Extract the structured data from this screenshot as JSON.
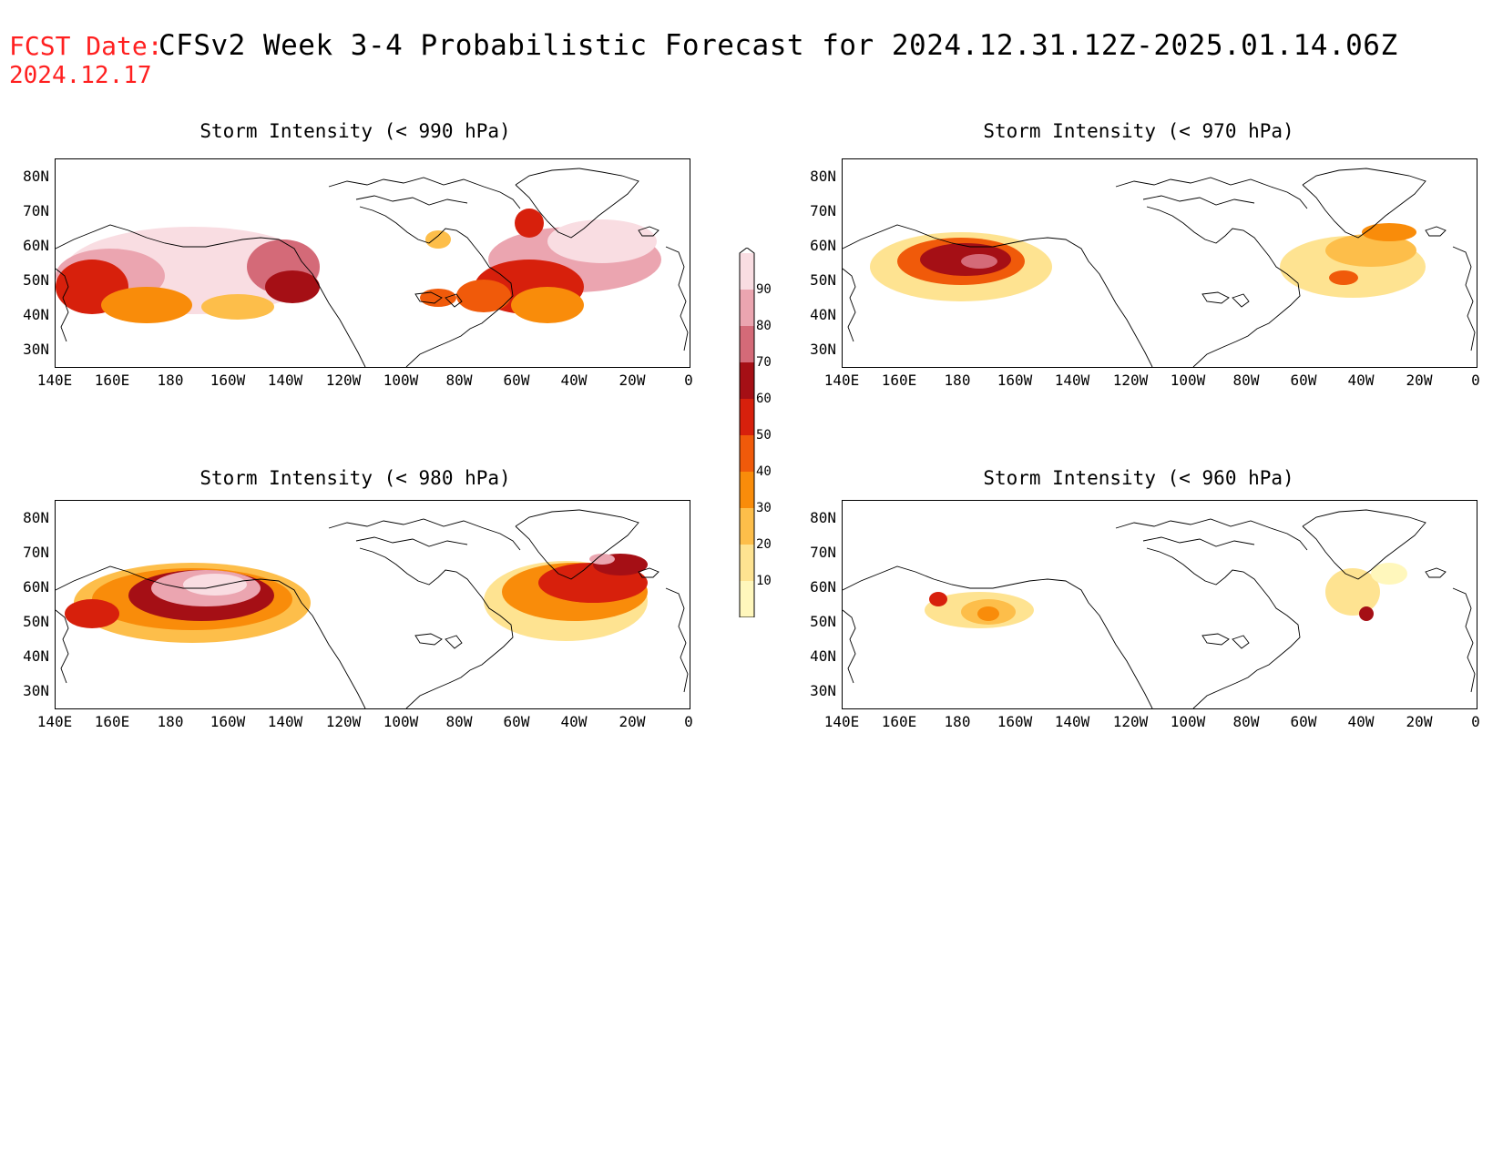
{
  "header": {
    "fcst_label": "FCST Date:",
    "fcst_date": "2024.12.17",
    "title": "CFSv2 Week 3-4 Probabilistic Forecast for 2024.12.31.12Z-2025.01.14.06Z"
  },
  "panels": [
    {
      "title": "Storm Intensity (< 990 hPa)"
    },
    {
      "title": "Storm Intensity (< 970 hPa)"
    },
    {
      "title": "Storm Intensity (< 980 hPa)"
    },
    {
      "title": "Storm Intensity (< 960 hPa)"
    }
  ],
  "axes": {
    "lat_labels": [
      "80N",
      "70N",
      "60N",
      "50N",
      "40N",
      "30N"
    ],
    "lon_labels": [
      "140E",
      "160E",
      "180",
      "160W",
      "140W",
      "120W",
      "100W",
      "80W",
      "60W",
      "40W",
      "20W",
      "0"
    ]
  },
  "colorbar": {
    "levels": [
      "10",
      "20",
      "30",
      "40",
      "50",
      "60",
      "70",
      "80",
      "90"
    ],
    "colors": [
      "#fff7bc",
      "#fee391",
      "#fdbe4a",
      "#f98c0a",
      "#f05a0a",
      "#d7200c",
      "#a50f15",
      "#d46a78",
      "#eba5b0",
      "#f9dde2"
    ]
  }
}
